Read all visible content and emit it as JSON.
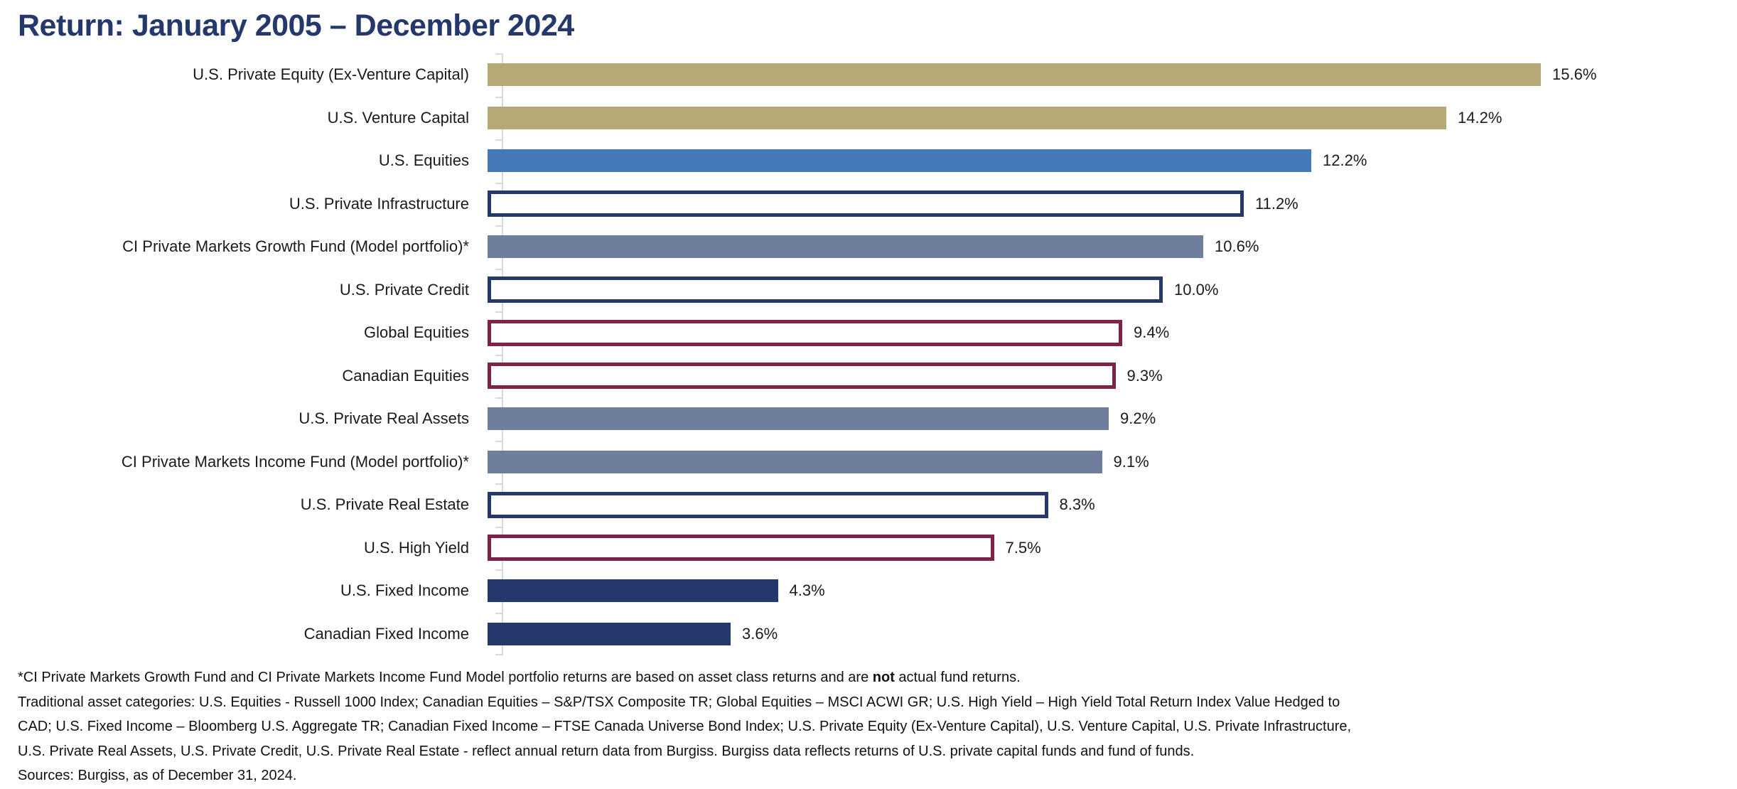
{
  "title": "Return: January 2005 – December 2024",
  "colors": {
    "title": "#24386B",
    "gold": "#B7A878",
    "blue": "#4379B7",
    "slate": "#6E7E9C",
    "navy": "#24386B",
    "maroon": "#7D2248",
    "axis": "#D9D9D9"
  },
  "chart_data": {
    "type": "bar",
    "orientation": "horizontal",
    "title": "Return: January 2005 – December 2024",
    "xlabel": "",
    "ylabel": "",
    "xlim": [
      0,
      16.5
    ],
    "grid": false,
    "legend": false,
    "value_suffix": "%",
    "categories": [
      "U.S. Private Equity (Ex-Venture Capital)",
      "U.S. Venture Capital",
      "U.S. Equities",
      "U.S. Private Infrastructure",
      "CI Private Markets Growth Fund (Model portfolio)*",
      "U.S. Private Credit",
      "Global Equities",
      "Canadian Equities",
      "U.S. Private Real Assets",
      "CI Private Markets Income Fund (Model portfolio)*",
      "U.S. Private Real Estate",
      "U.S. High Yield",
      "U.S. Fixed Income",
      "Canadian Fixed Income"
    ],
    "values": [
      15.6,
      14.2,
      12.2,
      11.2,
      10.6,
      10.0,
      9.4,
      9.3,
      9.2,
      9.1,
      8.3,
      7.5,
      4.3,
      3.6
    ],
    "labels": [
      "15.6%",
      "14.2%",
      "12.2%",
      "11.2%",
      "10.6%",
      "10.0%",
      "9.4%",
      "9.3%",
      "9.2%",
      "9.1%",
      "8.3%",
      "7.5%",
      "4.3%",
      "3.6%"
    ],
    "styles": [
      "gold-fill",
      "gold-fill",
      "blue-fill",
      "navy-outline",
      "slate-fill",
      "navy-outline",
      "maroon-outline",
      "maroon-outline",
      "slate-fill",
      "slate-fill",
      "navy-outline",
      "maroon-outline",
      "navy-fill",
      "navy-fill"
    ]
  },
  "footnotes": {
    "note1_pre": "*CI Private Markets Growth Fund and CI Private Markets Income Fund Model portfolio returns are based on asset class returns and are ",
    "note1_bold": "not",
    "note1_post": " actual fund returns.",
    "cat_lines": [
      "Traditional asset categories: U.S. Equities - Russell 1000 Index; Canadian Equities – S&P/TSX Composite TR; Global Equities – MSCI ACWI GR; U.S. High Yield – High Yield Total Return Index Value Hedged to",
      "CAD; U.S. Fixed Income – Bloomberg U.S. Aggregate TR; Canadian Fixed Income – FTSE Canada Universe Bond Index; U.S. Private Equity (Ex-Venture Capital), U.S. Venture Capital, U.S. Private Infrastructure,",
      "U.S. Private Real Assets, U.S. Private Credit, U.S. Private Real Estate - reflect annual return data from Burgiss. Burgiss data reflects returns of U.S. private capital funds and fund of funds."
    ],
    "sources": "Sources: Burgiss, as of December 31, 2024."
  }
}
